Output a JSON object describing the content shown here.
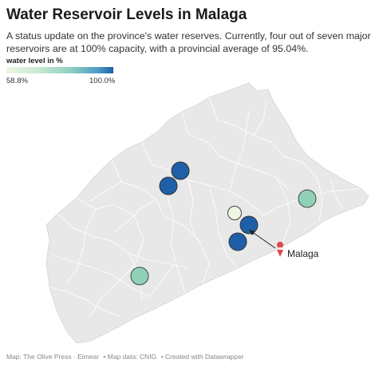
{
  "title": "Water Reservoir Levels in Malaga",
  "subtitle": "A status update on the province's water reserves. Currently, four out of seven major reservoirs are at 100% capacity, with a provincial average of 95.04%.",
  "legend": {
    "title": "water level in %",
    "min_label": "58.8%",
    "max_label": "100.0%",
    "colors": [
      "#eef6e2",
      "#8fd0c0",
      "#1f5fa8"
    ]
  },
  "annotation": {
    "label": "Malaga",
    "icon": "pin-icon"
  },
  "colors": {
    "land": "#e8e8e8",
    "border": "#ffffff",
    "marker_stroke": "#444444",
    "full": "#1f5fa8",
    "mid": "#8fd0b6",
    "low": "#eef6e2"
  },
  "footer": {
    "map_credit": "Map: The Olive Press · Eimear",
    "data_credit": "• Map data: CNIG",
    "tool_credit": "• Created with Datawrapper"
  }
}
